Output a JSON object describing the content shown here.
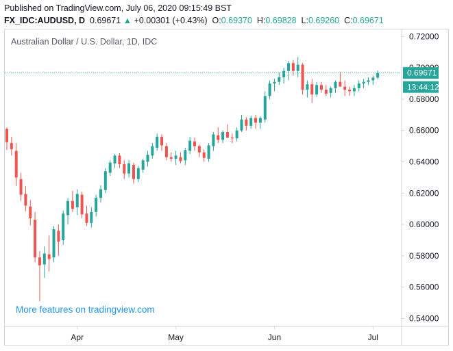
{
  "header": {
    "published": "Published on TradingView.com, July 06, 2020 09:15:49 BST",
    "symbol": "FX_IDC:AUDUSD, D",
    "last": "0.69671",
    "change_arrow": "▲",
    "change": "+0.00301 (+0.43%)",
    "o_label": "O:",
    "o_value": "0.69370",
    "h_label": "H:",
    "h_value": "0.69828",
    "l_label": "L:",
    "l_value": "0.69260",
    "c_label": "C:",
    "c_value": "0.69671"
  },
  "promo_text": "More features on tradingview.com",
  "chart_data": {
    "type": "candlestick",
    "title": "Australian Dollar / U.S. Dollar, 1D, IDC",
    "xlabel": "",
    "ylabel": "",
    "ylim": [
      0.535,
      0.7245
    ],
    "grid": false,
    "y_ticks": [
      "0.72000",
      "0.70000",
      "0.68000",
      "0.66000",
      "0.64000",
      "0.62000",
      "0.60000",
      "0.58000",
      "0.56000",
      "0.54000"
    ],
    "y_tick_values": [
      0.72,
      0.7,
      0.68,
      0.66,
      0.64,
      0.62,
      0.6,
      0.58,
      0.56,
      0.54
    ],
    "x_ticks": [
      "Apr",
      "May",
      "Jun",
      "Jul"
    ],
    "x_tick_index": [
      15,
      36,
      57,
      78
    ],
    "last_price": 0.69671,
    "last_price_label": "0.69671",
    "countdown_label": "13:44:12",
    "colors": {
      "up": "#26a69a",
      "down": "#ef5350",
      "price_line": "#26a69a"
    },
    "candles": [
      {
        "o": 0.661,
        "h": 0.662,
        "l": 0.6475,
        "c": 0.6525
      },
      {
        "o": 0.652,
        "h": 0.656,
        "l": 0.644,
        "c": 0.648
      },
      {
        "o": 0.647,
        "h": 0.652,
        "l": 0.6245,
        "c": 0.63
      },
      {
        "o": 0.629,
        "h": 0.633,
        "l": 0.615,
        "c": 0.619
      },
      {
        "o": 0.6195,
        "h": 0.6245,
        "l": 0.6085,
        "c": 0.612
      },
      {
        "o": 0.6115,
        "h": 0.6155,
        "l": 0.5995,
        "c": 0.604
      },
      {
        "o": 0.603,
        "h": 0.608,
        "l": 0.576,
        "c": 0.579
      },
      {
        "o": 0.579,
        "h": 0.583,
        "l": 0.551,
        "c": 0.574
      },
      {
        "o": 0.5745,
        "h": 0.586,
        "l": 0.566,
        "c": 0.5815
      },
      {
        "o": 0.581,
        "h": 0.593,
        "l": 0.57,
        "c": 0.578
      },
      {
        "o": 0.579,
        "h": 0.599,
        "l": 0.576,
        "c": 0.597
      },
      {
        "o": 0.596,
        "h": 0.6,
        "l": 0.58,
        "c": 0.589
      },
      {
        "o": 0.59,
        "h": 0.609,
        "l": 0.587,
        "c": 0.607
      },
      {
        "o": 0.606,
        "h": 0.617,
        "l": 0.6,
        "c": 0.615
      },
      {
        "o": 0.615,
        "h": 0.6215,
        "l": 0.608,
        "c": 0.61
      },
      {
        "o": 0.611,
        "h": 0.6225,
        "l": 0.606,
        "c": 0.6195
      },
      {
        "o": 0.619,
        "h": 0.621,
        "l": 0.604,
        "c": 0.6065
      },
      {
        "o": 0.607,
        "h": 0.612,
        "l": 0.599,
        "c": 0.601
      },
      {
        "o": 0.601,
        "h": 0.611,
        "l": 0.598,
        "c": 0.608
      },
      {
        "o": 0.608,
        "h": 0.619,
        "l": 0.605,
        "c": 0.617
      },
      {
        "o": 0.617,
        "h": 0.625,
        "l": 0.614,
        "c": 0.6225
      },
      {
        "o": 0.622,
        "h": 0.636,
        "l": 0.62,
        "c": 0.634
      },
      {
        "o": 0.633,
        "h": 0.641,
        "l": 0.631,
        "c": 0.6395
      },
      {
        "o": 0.639,
        "h": 0.645,
        "l": 0.636,
        "c": 0.644
      },
      {
        "o": 0.644,
        "h": 0.6455,
        "l": 0.636,
        "c": 0.6385
      },
      {
        "o": 0.6385,
        "h": 0.641,
        "l": 0.629,
        "c": 0.6325
      },
      {
        "o": 0.6325,
        "h": 0.641,
        "l": 0.63,
        "c": 0.639
      },
      {
        "o": 0.638,
        "h": 0.6395,
        "l": 0.626,
        "c": 0.629
      },
      {
        "o": 0.629,
        "h": 0.6375,
        "l": 0.627,
        "c": 0.636
      },
      {
        "o": 0.635,
        "h": 0.642,
        "l": 0.633,
        "c": 0.641
      },
      {
        "o": 0.64,
        "h": 0.647,
        "l": 0.637,
        "c": 0.6445
      },
      {
        "o": 0.644,
        "h": 0.652,
        "l": 0.642,
        "c": 0.65
      },
      {
        "o": 0.649,
        "h": 0.658,
        "l": 0.647,
        "c": 0.656
      },
      {
        "o": 0.656,
        "h": 0.6575,
        "l": 0.647,
        "c": 0.6505
      },
      {
        "o": 0.65,
        "h": 0.652,
        "l": 0.641,
        "c": 0.643
      },
      {
        "o": 0.643,
        "h": 0.646,
        "l": 0.64,
        "c": 0.642
      },
      {
        "o": 0.642,
        "h": 0.647,
        "l": 0.638,
        "c": 0.644
      },
      {
        "o": 0.643,
        "h": 0.646,
        "l": 0.639,
        "c": 0.6405
      },
      {
        "o": 0.641,
        "h": 0.649,
        "l": 0.638,
        "c": 0.6475
      },
      {
        "o": 0.647,
        "h": 0.656,
        "l": 0.645,
        "c": 0.6535
      },
      {
        "o": 0.653,
        "h": 0.6555,
        "l": 0.647,
        "c": 0.65
      },
      {
        "o": 0.65,
        "h": 0.651,
        "l": 0.643,
        "c": 0.646
      },
      {
        "o": 0.646,
        "h": 0.648,
        "l": 0.64,
        "c": 0.6425
      },
      {
        "o": 0.642,
        "h": 0.652,
        "l": 0.64,
        "c": 0.6505
      },
      {
        "o": 0.65,
        "h": 0.659,
        "l": 0.647,
        "c": 0.6575
      },
      {
        "o": 0.657,
        "h": 0.662,
        "l": 0.652,
        "c": 0.654
      },
      {
        "o": 0.654,
        "h": 0.66,
        "l": 0.652,
        "c": 0.659
      },
      {
        "o": 0.659,
        "h": 0.664,
        "l": 0.655,
        "c": 0.6555
      },
      {
        "o": 0.6555,
        "h": 0.658,
        "l": 0.652,
        "c": 0.655
      },
      {
        "o": 0.655,
        "h": 0.662,
        "l": 0.653,
        "c": 0.66
      },
      {
        "o": 0.66,
        "h": 0.67,
        "l": 0.659,
        "c": 0.667
      },
      {
        "o": 0.667,
        "h": 0.6685,
        "l": 0.66,
        "c": 0.663
      },
      {
        "o": 0.663,
        "h": 0.6695,
        "l": 0.661,
        "c": 0.668
      },
      {
        "o": 0.668,
        "h": 0.67,
        "l": 0.661,
        "c": 0.665
      },
      {
        "o": 0.665,
        "h": 0.669,
        "l": 0.661,
        "c": 0.668
      },
      {
        "o": 0.667,
        "h": 0.685,
        "l": 0.665,
        "c": 0.682
      },
      {
        "o": 0.682,
        "h": 0.692,
        "l": 0.68,
        "c": 0.69
      },
      {
        "o": 0.69,
        "h": 0.693,
        "l": 0.685,
        "c": 0.691
      },
      {
        "o": 0.691,
        "h": 0.697,
        "l": 0.689,
        "c": 0.694
      },
      {
        "o": 0.694,
        "h": 0.7,
        "l": 0.69,
        "c": 0.698
      },
      {
        "o": 0.698,
        "h": 0.7045,
        "l": 0.692,
        "c": 0.703
      },
      {
        "o": 0.703,
        "h": 0.705,
        "l": 0.695,
        "c": 0.698
      },
      {
        "o": 0.698,
        "h": 0.707,
        "l": 0.694,
        "c": 0.702
      },
      {
        "o": 0.702,
        "h": 0.703,
        "l": 0.683,
        "c": 0.686
      },
      {
        "o": 0.686,
        "h": 0.692,
        "l": 0.681,
        "c": 0.6895
      },
      {
        "o": 0.6895,
        "h": 0.693,
        "l": 0.6775,
        "c": 0.683
      },
      {
        "o": 0.683,
        "h": 0.691,
        "l": 0.6815,
        "c": 0.689
      },
      {
        "o": 0.689,
        "h": 0.691,
        "l": 0.684,
        "c": 0.686
      },
      {
        "o": 0.686,
        "h": 0.689,
        "l": 0.682,
        "c": 0.6835
      },
      {
        "o": 0.684,
        "h": 0.688,
        "l": 0.681,
        "c": 0.687
      },
      {
        "o": 0.687,
        "h": 0.692,
        "l": 0.684,
        "c": 0.691
      },
      {
        "o": 0.691,
        "h": 0.6975,
        "l": 0.688,
        "c": 0.688
      },
      {
        "o": 0.688,
        "h": 0.692,
        "l": 0.682,
        "c": 0.686
      },
      {
        "o": 0.686,
        "h": 0.688,
        "l": 0.682,
        "c": 0.685
      },
      {
        "o": 0.685,
        "h": 0.689,
        "l": 0.682,
        "c": 0.687
      },
      {
        "o": 0.687,
        "h": 0.692,
        "l": 0.685,
        "c": 0.69
      },
      {
        "o": 0.69,
        "h": 0.693,
        "l": 0.687,
        "c": 0.691
      },
      {
        "o": 0.691,
        "h": 0.694,
        "l": 0.689,
        "c": 0.692
      },
      {
        "o": 0.692,
        "h": 0.695,
        "l": 0.689,
        "c": 0.6937
      },
      {
        "o": 0.6937,
        "h": 0.6983,
        "l": 0.6926,
        "c": 0.6967
      }
    ]
  }
}
